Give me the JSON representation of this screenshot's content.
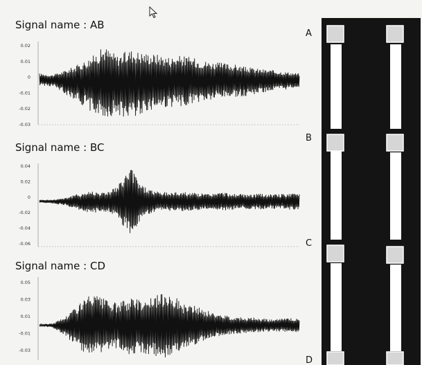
{
  "colors": {
    "background": "#f4f4f2",
    "waveform": "#111111",
    "panel": "#141414",
    "rail": "#ffffff",
    "handle": "#d7d7d7"
  },
  "icons": {
    "cursor": "mouse-pointer-icon"
  },
  "chart_data": [
    {
      "type": "line",
      "title": "Signal name : AB",
      "yticks": [
        "0.02",
        "0.01",
        "0",
        "-0.01",
        "-0.02",
        "-0.03"
      ],
      "ylim": [
        -0.03,
        0.025
      ],
      "envelope_x": [
        0,
        0.05,
        0.1,
        0.15,
        0.2,
        0.25,
        0.3,
        0.35,
        0.4,
        0.45,
        0.5,
        0.55,
        0.6,
        0.65,
        0.7,
        0.75,
        0.8,
        0.85,
        0.9,
        0.95,
        1.0
      ],
      "envelope_upper": [
        0.004,
        0.003,
        0.006,
        0.01,
        0.015,
        0.022,
        0.016,
        0.02,
        0.018,
        0.017,
        0.015,
        0.016,
        0.014,
        0.012,
        0.011,
        0.01,
        0.008,
        0.007,
        0.006,
        0.005,
        0.004
      ],
      "envelope_lower": [
        -0.004,
        -0.005,
        -0.01,
        -0.015,
        -0.022,
        -0.026,
        -0.024,
        -0.026,
        -0.022,
        -0.02,
        -0.019,
        -0.018,
        -0.016,
        -0.015,
        -0.013,
        -0.012,
        -0.011,
        -0.009,
        -0.008,
        -0.007,
        -0.005
      ]
    },
    {
      "type": "line",
      "title": "Signal name : BC",
      "yticks": [
        "0.04",
        "0.02",
        "0",
        "-0.02",
        "-0.04",
        "-0.06"
      ],
      "ylim": [
        -0.06,
        0.05
      ],
      "envelope_x": [
        0,
        0.05,
        0.1,
        0.15,
        0.2,
        0.25,
        0.3,
        0.35,
        0.4,
        0.45,
        0.5,
        0.55,
        0.6,
        0.65,
        0.7,
        0.75,
        0.8,
        0.85,
        0.9,
        0.95,
        1.0
      ],
      "envelope_upper": [
        0.002,
        0.002,
        0.005,
        0.01,
        0.014,
        0.012,
        0.02,
        0.046,
        0.02,
        0.013,
        0.012,
        0.013,
        0.011,
        0.01,
        0.012,
        0.01,
        0.009,
        0.01,
        0.009,
        0.01,
        0.011
      ],
      "envelope_lower": [
        -0.002,
        -0.003,
        -0.006,
        -0.012,
        -0.016,
        -0.014,
        -0.022,
        -0.046,
        -0.022,
        -0.015,
        -0.013,
        -0.014,
        -0.012,
        -0.011,
        -0.013,
        -0.011,
        -0.01,
        -0.011,
        -0.01,
        -0.011,
        -0.012
      ]
    },
    {
      "type": "line",
      "title": "Signal name : CD",
      "yticks": [
        "0.05",
        "0.03",
        "0.01",
        "-0.01",
        "-0.03"
      ],
      "ylim": [
        -0.04,
        0.055
      ],
      "envelope_x": [
        0,
        0.05,
        0.1,
        0.15,
        0.2,
        0.25,
        0.3,
        0.35,
        0.4,
        0.45,
        0.5,
        0.55,
        0.6,
        0.65,
        0.7,
        0.75,
        0.8,
        0.85,
        0.9,
        0.95,
        1.0
      ],
      "envelope_upper": [
        0.001,
        0.002,
        0.01,
        0.025,
        0.036,
        0.03,
        0.025,
        0.032,
        0.03,
        0.034,
        0.04,
        0.025,
        0.022,
        0.016,
        0.012,
        0.01,
        0.009,
        0.008,
        0.007,
        0.008,
        0.008
      ],
      "envelope_lower": [
        -0.001,
        -0.003,
        -0.012,
        -0.028,
        -0.038,
        -0.032,
        -0.026,
        -0.034,
        -0.032,
        -0.036,
        -0.04,
        -0.026,
        -0.022,
        -0.016,
        -0.012,
        -0.01,
        -0.009,
        -0.008,
        -0.007,
        -0.008,
        -0.008
      ]
    }
  ],
  "schematic": {
    "node_labels": [
      "A",
      "B",
      "C",
      "D"
    ]
  }
}
